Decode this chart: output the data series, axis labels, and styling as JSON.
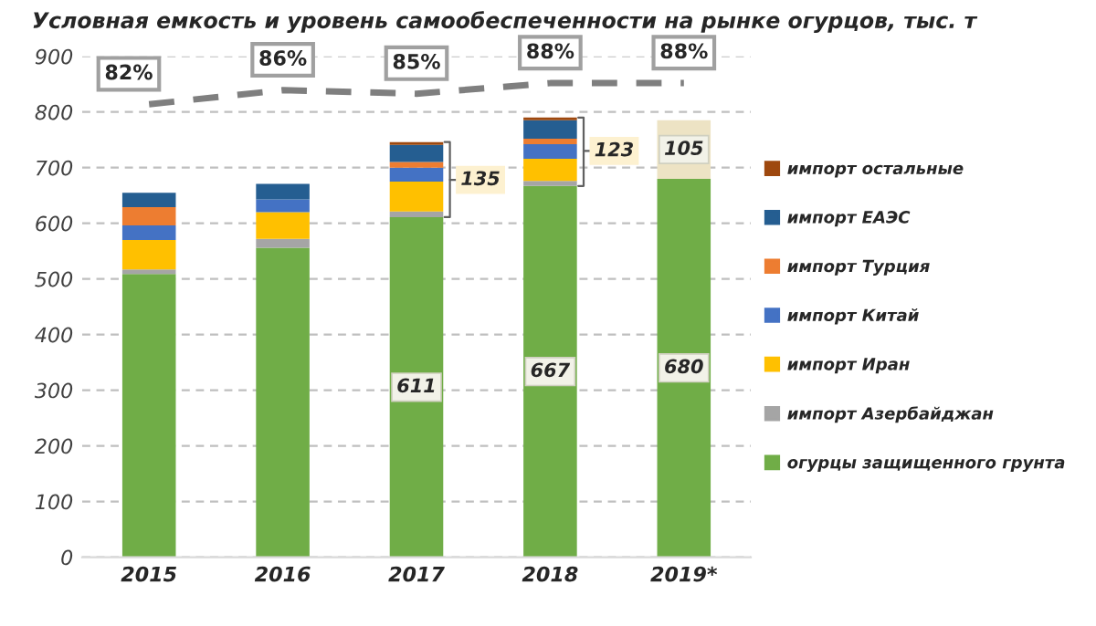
{
  "chart_data": {
    "type": "bar",
    "stacked": true,
    "title": "Условная емкость и уровень самообеспеченности на рынке огурцов, тыс. т",
    "categories": [
      "2015",
      "2016",
      "2017",
      "2018",
      "2019*"
    ],
    "series": [
      {
        "name": "огурцы защищенного грунта",
        "color": "#70ad47",
        "values": [
          509,
          556,
          611,
          667,
          680
        ],
        "value_labels": [
          null,
          null,
          "611",
          "667",
          "680"
        ]
      },
      {
        "name": "импорт Азербайджан",
        "color": "#a5a5a5",
        "values": [
          8,
          16,
          10,
          9,
          null
        ]
      },
      {
        "name": "импорт Иран",
        "color": "#ffc000",
        "values": [
          53,
          48,
          54,
          40,
          null
        ]
      },
      {
        "name": "импорт Китай",
        "color": "#4472c4",
        "values": [
          26,
          23,
          25,
          26,
          null
        ]
      },
      {
        "name": "импорт Турция",
        "color": "#ed7d31",
        "values": [
          33,
          null,
          10,
          10,
          null
        ]
      },
      {
        "name": "импорт ЕАЭС",
        "color": "#255e91",
        "values": [
          26,
          28,
          31,
          33,
          null
        ]
      },
      {
        "name": "импорт остальные",
        "color": "#9e480e",
        "values": [
          null,
          null,
          5,
          5,
          null
        ]
      },
      {
        "color": "#ede3c4",
        "values": [
          null,
          null,
          null,
          null,
          105
        ],
        "value_labels": [
          null,
          null,
          null,
          null,
          "105"
        ]
      },
      {
        "type": "line",
        "axis": "y2",
        "color": "#7f7f7f",
        "line_style": "dashed",
        "values": [
          82,
          86,
          85,
          88,
          88
        ],
        "value_labels": [
          "82%",
          "86%",
          "85%",
          "88%",
          "88%"
        ]
      }
    ],
    "ylim": [
      0,
      900
    ],
    "yticks": [
      0,
      100,
      200,
      300,
      400,
      500,
      600,
      700,
      800,
      900
    ],
    "y2lim": [
      -46.5,
      95.6
    ],
    "tick_labels": "xy",
    "annotations": [
      {
        "text": "135",
        "x": "2017",
        "y": 678
      },
      {
        "text": "123",
        "x": "2018",
        "y": 730
      }
    ],
    "grid": "y",
    "legend": "right"
  }
}
